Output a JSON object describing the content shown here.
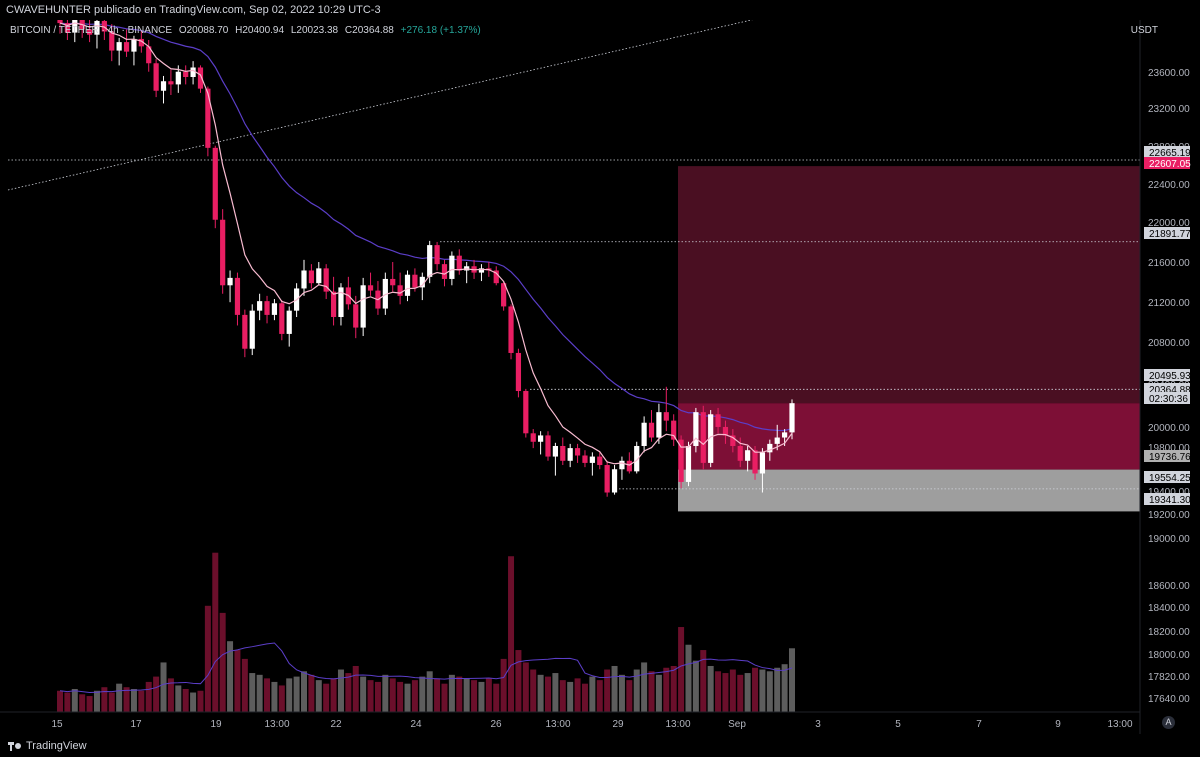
{
  "header": {
    "attribution": "CWAVEHUNTER publicado en TradingView.com, Sep 02, 2022 10:29 UTC-3"
  },
  "symbol_bar": {
    "symbol": "BITCOIN / TETHER · 4h · BINANCE",
    "open": "O20088.70",
    "high": "H20400.94",
    "low": "L20023.38",
    "close": "C20364.88",
    "change": "+276.18 (+1.37%)"
  },
  "currency": "USDT",
  "footer": {
    "brand": "TradingView",
    "timezone_icon": "A"
  },
  "colors": {
    "background": "#000000",
    "up_candle": "#ffffff",
    "down_candle": "#e91e63",
    "ema_fast": "#f8bbd0",
    "ema_slow": "#5b3ec8",
    "supply_zone": "#4a0f22",
    "supply_zone_bright": "#7d0f36",
    "demand_zone": "#9e9e9e",
    "volume_up": "#5d5d5d",
    "volume_down": "#6b0f2b"
  },
  "chart_data": {
    "type": "candlestick",
    "title": "BITCOIN / TETHER · 4h · BINANCE",
    "ylabel": "USDT",
    "ylim": [
      17460,
      24000
    ],
    "y_ticks": [
      "23600.00",
      "23200.00",
      "22800.00",
      "22400.00",
      "22000.00",
      "21600.00",
      "21200.00",
      "20800.00",
      "20400.00",
      "20000.00",
      "19800.00",
      "19400.00",
      "19200.00",
      "19000.00",
      "18600.00",
      "18400.00",
      "18200.00",
      "18000.00",
      "17820.00",
      "17640.00"
    ],
    "x_ticks": [
      "15",
      "17",
      "19",
      "13:00",
      "22",
      "24",
      "26",
      "13:00",
      "29",
      "13:00",
      "Sep",
      "3",
      "5",
      "7",
      "9",
      "13:00"
    ],
    "price_labels": [
      {
        "text": "22665.19",
        "value": 22665.19,
        "style": "white"
      },
      {
        "text": "22607.05",
        "value": 22607.05,
        "style": "red"
      },
      {
        "text": "21891.77",
        "value": 21891.77,
        "style": "white"
      },
      {
        "text": "20495.93",
        "value": 20495.93,
        "style": "white"
      },
      {
        "text": "20364.88",
        "value": 20364.88,
        "style": "white"
      },
      {
        "text": "02:30:36",
        "value": 20280,
        "style": "white"
      },
      {
        "text": "19736.76",
        "value": 19736.76,
        "style": "grey"
      },
      {
        "text": "19554.25",
        "value": 19554.25,
        "style": "white"
      },
      {
        "text": "19341.30",
        "value": 19341.3,
        "style": "white"
      }
    ],
    "zones": [
      {
        "name": "supply",
        "from": 20364.88,
        "to": 22607.05
      },
      {
        "name": "supply-inner",
        "from": 19736.76,
        "to": 20364.88
      },
      {
        "name": "demand",
        "from": 19341.3,
        "to": 19736.76
      }
    ],
    "horizontal_levels": [
      22665.19,
      21891.77,
      20495.93,
      19554.25
    ],
    "candles": [
      [
        24100,
        24150,
        23860,
        23960
      ],
      [
        23960,
        24050,
        23800,
        23870
      ],
      [
        23870,
        24100,
        23780,
        24030
      ],
      [
        24030,
        24080,
        23820,
        23900
      ],
      [
        23900,
        23990,
        23780,
        23850
      ],
      [
        23850,
        24010,
        23720,
        23980
      ],
      [
        23980,
        24050,
        23800,
        23880
      ],
      [
        23880,
        23950,
        23600,
        23700
      ],
      [
        23700,
        23820,
        23560,
        23780
      ],
      [
        23780,
        23900,
        23640,
        23690
      ],
      [
        23690,
        23840,
        23560,
        23810
      ],
      [
        23810,
        23890,
        23680,
        23740
      ],
      [
        23740,
        23800,
        23500,
        23580
      ],
      [
        23580,
        23620,
        23260,
        23320
      ],
      [
        23320,
        23460,
        23200,
        23410
      ],
      [
        23410,
        23520,
        23280,
        23380
      ],
      [
        23380,
        23560,
        23300,
        23500
      ],
      [
        23500,
        23560,
        23380,
        23450
      ],
      [
        23450,
        23600,
        23380,
        23540
      ],
      [
        23540,
        23560,
        23300,
        23340
      ],
      [
        23340,
        23360,
        22700,
        22780
      ],
      [
        22780,
        22800,
        22020,
        22100
      ],
      [
        22100,
        22200,
        21400,
        21480
      ],
      [
        21480,
        21620,
        21320,
        21550
      ],
      [
        21550,
        21600,
        21100,
        21200
      ],
      [
        21200,
        21250,
        20800,
        20880
      ],
      [
        20880,
        21300,
        20820,
        21240
      ],
      [
        21240,
        21400,
        21150,
        21330
      ],
      [
        21330,
        21380,
        21120,
        21200
      ],
      [
        21200,
        21350,
        21150,
        21310
      ],
      [
        21310,
        21340,
        20960,
        21020
      ],
      [
        21020,
        21280,
        20900,
        21240
      ],
      [
        21240,
        21500,
        21180,
        21450
      ],
      [
        21450,
        21720,
        21380,
        21620
      ],
      [
        21620,
        21680,
        21450,
        21500
      ],
      [
        21500,
        21700,
        21480,
        21640
      ],
      [
        21640,
        21680,
        21350,
        21420
      ],
      [
        21420,
        21560,
        21100,
        21180
      ],
      [
        21180,
        21500,
        21100,
        21460
      ],
      [
        21460,
        21560,
        21250,
        21300
      ],
      [
        21300,
        21380,
        20980,
        21080
      ],
      [
        21080,
        21550,
        21000,
        21480
      ],
      [
        21480,
        21600,
        21380,
        21430
      ],
      [
        21430,
        21520,
        21200,
        21260
      ],
      [
        21260,
        21600,
        21200,
        21540
      ],
      [
        21540,
        21700,
        21420,
        21480
      ],
      [
        21480,
        21600,
        21300,
        21380
      ],
      [
        21380,
        21620,
        21330,
        21580
      ],
      [
        21580,
        21640,
        21420,
        21460
      ],
      [
        21460,
        21600,
        21340,
        21560
      ],
      [
        21560,
        21900,
        21500,
        21860
      ],
      [
        21860,
        21890,
        21620,
        21680
      ],
      [
        21680,
        21720,
        21470,
        21540
      ],
      [
        21540,
        21800,
        21480,
        21760
      ],
      [
        21760,
        21820,
        21580,
        21620
      ],
      [
        21620,
        21700,
        21500,
        21660
      ],
      [
        21660,
        21720,
        21540,
        21600
      ],
      [
        21600,
        21680,
        21520,
        21640
      ],
      [
        21640,
        21700,
        21560,
        21620
      ],
      [
        21620,
        21660,
        21480,
        21500
      ],
      [
        21500,
        21520,
        21240,
        21280
      ],
      [
        21280,
        21300,
        20780,
        20840
      ],
      [
        20840,
        20880,
        20420,
        20480
      ],
      [
        20480,
        20500,
        20040,
        20080
      ],
      [
        20080,
        20120,
        19940,
        20000
      ],
      [
        20000,
        20100,
        19880,
        20060
      ],
      [
        20060,
        20100,
        19820,
        19860
      ],
      [
        19860,
        19990,
        19680,
        19960
      ],
      [
        19960,
        20040,
        19780,
        19820
      ],
      [
        19820,
        19980,
        19760,
        19940
      ],
      [
        19940,
        19980,
        19800,
        19870
      ],
      [
        19870,
        19920,
        19760,
        19800
      ],
      [
        19800,
        19900,
        19680,
        19860
      ],
      [
        19860,
        19900,
        19740,
        19780
      ],
      [
        19780,
        19820,
        19480,
        19520
      ],
      [
        19520,
        19780,
        19500,
        19740
      ],
      [
        19740,
        19860,
        19640,
        19820
      ],
      [
        19820,
        19900,
        19700,
        19720
      ],
      [
        19720,
        20000,
        19700,
        19960
      ],
      [
        19960,
        20240,
        19900,
        20180
      ],
      [
        20180,
        20300,
        20000,
        20040
      ],
      [
        20040,
        20360,
        19980,
        20280
      ],
      [
        20280,
        20520,
        20100,
        20200
      ],
      [
        20200,
        20260,
        19960,
        20020
      ],
      [
        20020,
        20060,
        19560,
        19620
      ],
      [
        19620,
        20000,
        19580,
        19960
      ],
      [
        19960,
        20320,
        19900,
        20280
      ],
      [
        20280,
        20340,
        19740,
        19800
      ],
      [
        19800,
        20300,
        19760,
        20260
      ],
      [
        20260,
        20320,
        20080,
        20140
      ],
      [
        20140,
        20200,
        19980,
        20060
      ],
      [
        20060,
        20120,
        19900,
        19960
      ],
      [
        19960,
        20040,
        19760,
        19820
      ],
      [
        19820,
        19960,
        19720,
        19920
      ],
      [
        19920,
        19960,
        19640,
        19700
      ],
      [
        19700,
        19940,
        19520,
        19900
      ],
      [
        19900,
        20020,
        19820,
        19980
      ],
      [
        19980,
        20160,
        19920,
        20040
      ],
      [
        20040,
        20120,
        19960,
        20088.7
      ],
      [
        20088.7,
        20400.94,
        20023.38,
        20364.88
      ]
    ],
    "volume_panel": {
      "ylim": [
        0,
        1000
      ],
      "volumes": [
        120,
        110,
        130,
        100,
        90,
        120,
        140,
        110,
        160,
        140,
        130,
        120,
        170,
        200,
        280,
        190,
        150,
        130,
        110,
        120,
        600,
        900,
        560,
        400,
        350,
        300,
        220,
        210,
        190,
        170,
        150,
        190,
        200,
        230,
        210,
        180,
        160,
        190,
        240,
        220,
        260,
        200,
        180,
        170,
        210,
        190,
        170,
        160,
        180,
        200,
        230,
        190,
        160,
        210,
        200,
        190,
        180,
        170,
        190,
        160,
        300,
        880,
        350,
        280,
        240,
        210,
        200,
        220,
        180,
        170,
        190,
        160,
        200,
        180,
        240,
        260,
        210,
        180,
        240,
        280,
        230,
        210,
        250,
        260,
        480,
        380,
        290,
        350,
        260,
        230,
        220,
        240,
        210,
        220,
        250,
        240,
        230,
        250,
        270,
        360
      ]
    },
    "series": [
      {
        "name": "EMA fast",
        "color": "pink"
      },
      {
        "name": "EMA slow",
        "color": "purple"
      }
    ]
  }
}
